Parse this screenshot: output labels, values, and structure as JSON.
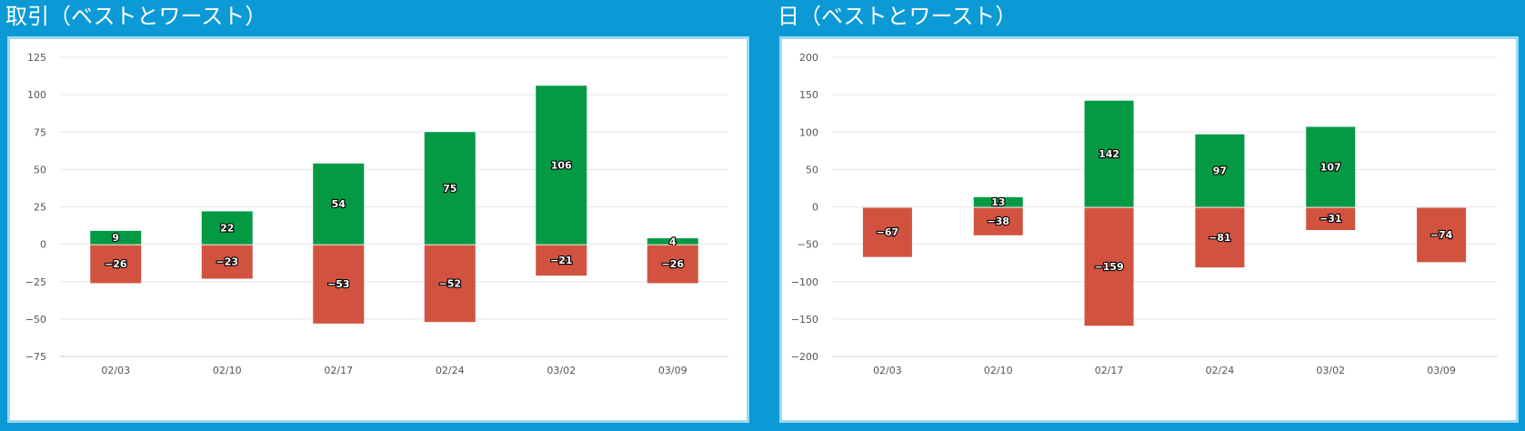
{
  "panels": [
    {
      "title": "取引（ベストとワースト）"
    },
    {
      "title": "日（ベストとワースト）"
    }
  ],
  "colors": {
    "best": "#039a43",
    "worst": "#d1533f",
    "grid": "#e6e6e6",
    "axis": "#cccccc"
  },
  "chart_data": [
    {
      "type": "bar",
      "title": "取引（ベストとワースト）",
      "categories": [
        "02/03",
        "02/10",
        "02/17",
        "02/24",
        "03/02",
        "03/09"
      ],
      "series": [
        {
          "values": [
            9,
            22,
            54,
            75,
            106,
            4
          ],
          "color": "#039a43"
        },
        {
          "values": [
            -26,
            -23,
            -53,
            -52,
            -21,
            -26
          ],
          "color": "#d1533f"
        }
      ],
      "ylim": [
        -75,
        125
      ],
      "yticks": [
        125,
        100,
        75,
        50,
        25,
        0,
        -25,
        -50,
        -75
      ],
      "grid": true,
      "data_labels": true
    },
    {
      "type": "bar",
      "title": "日（ベストとワースト）",
      "categories": [
        "02/03",
        "02/10",
        "02/17",
        "02/24",
        "03/02",
        "03/09"
      ],
      "series": [
        {
          "values": [
            null,
            13,
            142,
            97,
            107,
            null
          ],
          "color": "#039a43"
        },
        {
          "values": [
            -67,
            -38,
            -159,
            -81,
            -31,
            -74
          ],
          "color": "#d1533f"
        }
      ],
      "ylim": [
        -200,
        200
      ],
      "yticks": [
        200,
        150,
        100,
        50,
        0,
        -50,
        -100,
        -150,
        -200
      ],
      "grid": true,
      "data_labels": true
    }
  ]
}
